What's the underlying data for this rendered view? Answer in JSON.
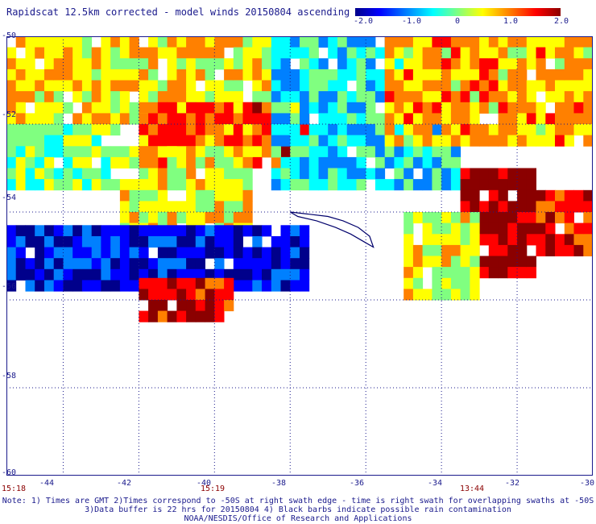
{
  "chart_data": {
    "type": "heatmap",
    "title": "Rapidscat 12.5km corrected - model winds 20150804 ascending",
    "xlabel": "",
    "ylabel": "",
    "x_range": [
      -45.5,
      -30
    ],
    "y_range": [
      -60,
      -50
    ],
    "x_ticks": [
      "-44",
      "-42",
      "-40",
      "-38",
      "-36",
      "-34",
      "-32",
      "-30"
    ],
    "y_ticks": [
      "-50",
      "-52",
      "-54",
      "-56",
      "-58",
      "-60"
    ],
    "colorbar": {
      "min": -2.0,
      "max": 2.0,
      "tick_labels": [
        "-2.0",
        "-1.0",
        "0",
        "1.0",
        "2.0"
      ],
      "colors": [
        "#00008b",
        "#0000ff",
        "#0080ff",
        "#00ffff",
        "#80ff80",
        "#ffff00",
        "#ff8000",
        "#ff0000",
        "#8b0000"
      ]
    },
    "grid": true,
    "regions": [
      {
        "lon": [
          -45.5,
          -38.5
        ],
        "lat": [
          -52.0,
          -50.0
        ],
        "mean_diff": 0.6
      },
      {
        "lon": [
          -42.0,
          -37.5
        ],
        "lat": [
          -52.8,
          -51.5
        ],
        "mean_diff": 1.2
      },
      {
        "lon": [
          -45.5,
          -42.5
        ],
        "lat": [
          -53.5,
          -52.0
        ],
        "mean_diff": 0.0
      },
      {
        "lon": [
          -42.5,
          -39.0
        ],
        "lat": [
          -54.5,
          -52.5
        ],
        "mean_diff": 0.5
      },
      {
        "lon": [
          -38.5,
          -33.5
        ],
        "lat": [
          -53.5,
          -50.0
        ],
        "mean_diff": -0.6
      },
      {
        "lon": [
          -45.5,
          -37.5
        ],
        "lat": [
          -55.7,
          -54.3
        ],
        "mean_diff": -1.6
      },
      {
        "lon": [
          -42.0,
          -39.5
        ],
        "lat": [
          -56.5,
          -55.5
        ],
        "mean_diff": 1.7
      },
      {
        "lon": [
          -33.5,
          -31.5
        ],
        "lat": [
          -55.5,
          -53.0
        ],
        "mean_diff": 2.0
      },
      {
        "lon": [
          -31.5,
          -30.0
        ],
        "lat": [
          -55.0,
          -53.5
        ],
        "mean_diff": 1.5
      },
      {
        "lon": [
          -35.5,
          -30.0
        ],
        "lat": [
          -52.5,
          -50.0
        ],
        "mean_diff": 0.8
      },
      {
        "lon": [
          -35.0,
          -33.0
        ],
        "lat": [
          -56.0,
          -54.0
        ],
        "mean_diff": 0.4
      }
    ],
    "land": "South Georgia outline near 37W, 54.3S"
  },
  "time_labels": [
    "15:18",
    "15:19",
    "13:44"
  ],
  "notes": [
    "Note: 1) Times are GMT 2)Times correspond to -50S at right swath edge - time is right swath for overlapping swaths at -50S",
    "3)Data buffer is 22 hrs for 20150804 4) Black barbs indicate possible rain contamination",
    "NOAA/NESDIS/Office of Research and Applications"
  ]
}
